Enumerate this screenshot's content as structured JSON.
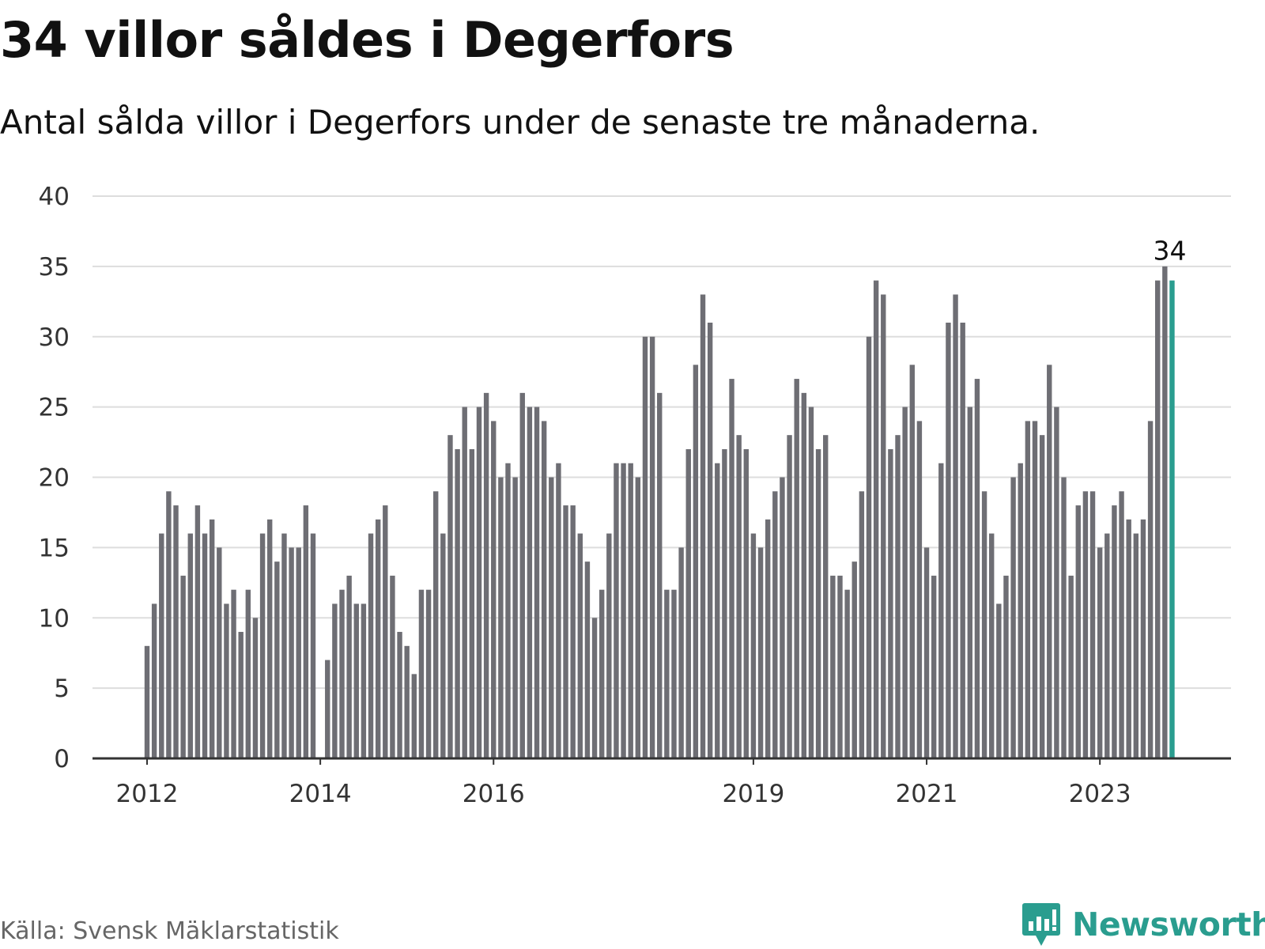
{
  "header": {
    "title": "34 villor såldes i Degerfors",
    "subtitle": "Antal sålda villor i Degerfors under de senaste tre månaderna."
  },
  "footer": {
    "source": "Källa: Svensk Mäklarstatistik",
    "brand": "Newsworthy"
  },
  "colors": {
    "bar": "#6e6e74",
    "highlight": "#2a9d8f",
    "grid": "#dddddd",
    "axis": "#333333",
    "brand": "#2a9d8f"
  },
  "icons": {
    "logo": "bar-chart-speech-bubble-icon"
  },
  "chart_data": {
    "type": "bar",
    "title": "34 villor såldes i Degerfors",
    "xlabel": "",
    "ylabel": "",
    "ylim": [
      0,
      40
    ],
    "yticks": [
      0,
      5,
      10,
      15,
      20,
      25,
      30,
      35,
      40
    ],
    "grid": true,
    "x_tick_labels": [
      {
        "label": "2012",
        "index": 0
      },
      {
        "label": "2014",
        "index": 24
      },
      {
        "label": "2016",
        "index": 48
      },
      {
        "label": "2019",
        "index": 84
      },
      {
        "label": "2021",
        "index": 108
      },
      {
        "label": "2023",
        "index": 132
      }
    ],
    "values": [
      8,
      11,
      16,
      19,
      18,
      13,
      16,
      18,
      16,
      17,
      15,
      11,
      12,
      9,
      12,
      10,
      16,
      17,
      14,
      16,
      15,
      15,
      18,
      16,
      0,
      7,
      11,
      12,
      13,
      11,
      11,
      16,
      17,
      18,
      13,
      9,
      8,
      6,
      12,
      12,
      19,
      16,
      23,
      22,
      25,
      22,
      25,
      26,
      24,
      20,
      21,
      20,
      26,
      25,
      25,
      24,
      20,
      21,
      18,
      18,
      16,
      14,
      10,
      12,
      16,
      21,
      21,
      21,
      20,
      30,
      30,
      26,
      12,
      12,
      15,
      22,
      28,
      33,
      31,
      21,
      22,
      27,
      23,
      22,
      16,
      15,
      17,
      19,
      20,
      23,
      27,
      26,
      25,
      22,
      23,
      13,
      13,
      12,
      14,
      19,
      30,
      34,
      33,
      22,
      23,
      25,
      28,
      24,
      15,
      13,
      21,
      31,
      33,
      31,
      25,
      27,
      19,
      16,
      11,
      13,
      20,
      21,
      24,
      24,
      23,
      28,
      25,
      20,
      13,
      18,
      19,
      19,
      15,
      16,
      18,
      19,
      17,
      16,
      17,
      24,
      34,
      35,
      34
    ],
    "highlight_index": 142,
    "highlight_label": "34"
  }
}
